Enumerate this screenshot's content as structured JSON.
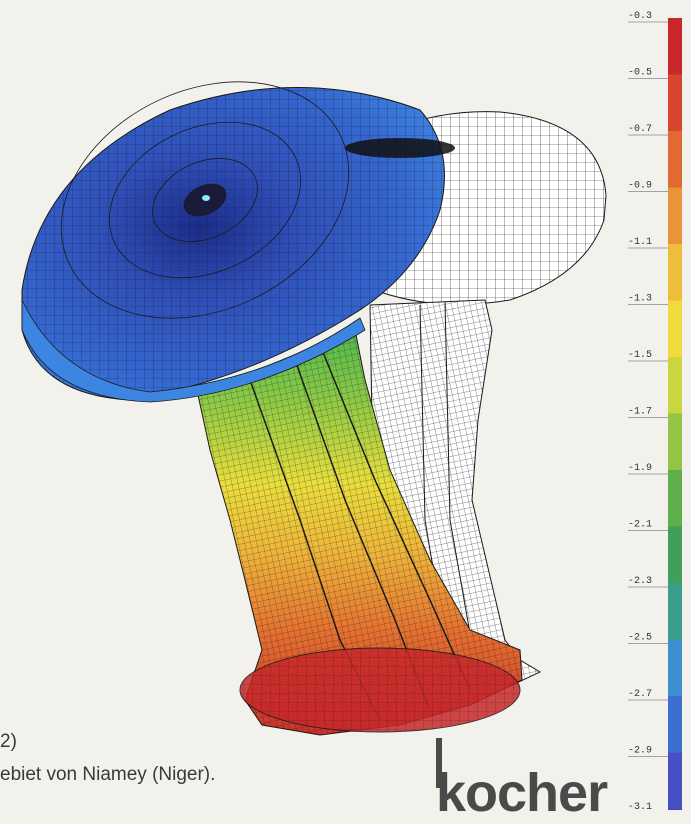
{
  "legend": {
    "labels": [
      "-0.3",
      "-0.5",
      "-0.7",
      "-0.9",
      "-1.1",
      "-1.3",
      "-1.5",
      "-1.7",
      "-1.9",
      "-2.1",
      "-2.3",
      "-2.5",
      "-2.7",
      "-2.9",
      "-3.1"
    ],
    "colors": [
      "#c8282a",
      "#d8452e",
      "#e06a32",
      "#e89438",
      "#efbd3c",
      "#f0da3e",
      "#c9d640",
      "#93c446",
      "#5fb04a",
      "#3ea05a",
      "#3b9e8a",
      "#3e8fcf",
      "#3d6fd0",
      "#4450c4",
      "#4a3fb0"
    ]
  },
  "caption": {
    "line1": "2)",
    "line2": "ebiet von Niamey (Niger)."
  },
  "logo": {
    "text": "kocher"
  },
  "colors": {
    "mesh_line": "#1a1a1a",
    "undeformed_fill": "#ffffff",
    "background": "#f3f1ec"
  }
}
